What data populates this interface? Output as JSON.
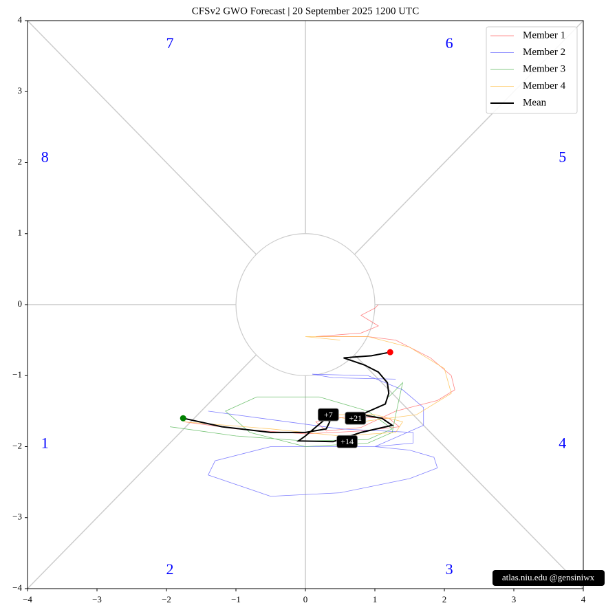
{
  "chart_data": {
    "type": "line",
    "title": "CFSv2 GWO Forecast   |   20  September  2025 1200 UTC",
    "xlim": [
      -4,
      4
    ],
    "ylim": [
      -4,
      4
    ],
    "xticks": [
      {
        "value": -4,
        "label": "−4"
      },
      {
        "value": -3,
        "label": "−3"
      },
      {
        "value": -2,
        "label": "−2"
      },
      {
        "value": -1,
        "label": "−1"
      },
      0,
      1,
      2,
      3,
      4
    ],
    "yticks": [
      {
        "value": -4,
        "label": "−4"
      },
      {
        "value": -3,
        "label": "−3"
      },
      {
        "value": -2,
        "label": "−2"
      },
      {
        "value": -1,
        "label": "−1"
      },
      0,
      1,
      2,
      3,
      4
    ],
    "legend": "upper right",
    "series": [
      {
        "name": "Member 1",
        "color": "#ff6f6f",
        "x": [
          -1.75,
          -1.0,
          0.0,
          0.8,
          1.35,
          1.2,
          0.6,
          0.15,
          0.3,
          0.8,
          1.3,
          1.9,
          2.15,
          2.1,
          1.8,
          1.3,
          0.9,
          0.15,
          0.8,
          1.05,
          0.8,
          1.0,
          1.05
        ],
        "y": [
          -1.65,
          -1.75,
          -1.82,
          -1.78,
          -1.72,
          -1.6,
          -1.58,
          -1.65,
          -1.78,
          -1.73,
          -1.5,
          -1.35,
          -1.2,
          -1.0,
          -0.75,
          -0.5,
          -0.45,
          -0.45,
          -0.4,
          -0.3,
          -0.15,
          -0.05,
          0.0
        ]
      },
      {
        "name": "Member 2",
        "color": "#6a6aff",
        "x": [
          -1.4,
          0.5,
          1.55,
          1.55,
          1.0,
          -0.5,
          -1.3,
          -1.4,
          -0.5,
          0.5,
          1.5,
          1.9,
          1.85,
          1.5,
          1.0,
          1.7,
          1.7,
          1.4,
          0.9,
          0.1,
          0.4,
          1.3
        ],
        "y": [
          -1.5,
          -1.75,
          -1.8,
          -1.95,
          -2.0,
          -2.0,
          -2.2,
          -2.4,
          -2.7,
          -2.65,
          -2.45,
          -2.3,
          -2.15,
          -2.05,
          -2.0,
          -1.7,
          -1.45,
          -1.2,
          -1.0,
          -0.98,
          -1.03,
          -1.05
        ]
      },
      {
        "name": "Member 3",
        "color": "#5cb85c",
        "x": [
          -1.95,
          -1.0,
          0.0,
          0.9,
          1.25,
          0.9,
          0.2,
          -0.7,
          -1.15,
          -0.8,
          0.0,
          0.9,
          1.25,
          1.3,
          1.4,
          1.2
        ],
        "y": [
          -1.72,
          -1.85,
          -1.92,
          -1.9,
          -1.75,
          -1.5,
          -1.3,
          -1.3,
          -1.5,
          -1.8,
          -2.0,
          -1.95,
          -1.8,
          -1.55,
          -1.1,
          -1.3
        ]
      },
      {
        "name": "Member 4",
        "color": "#ffc04d",
        "x": [
          -1.75,
          -0.5,
          0.5,
          1.3,
          1.4,
          1.0,
          0.3,
          0.8,
          1.6,
          2.1,
          2.0,
          1.5,
          0.9,
          0.0,
          0.5
        ],
        "y": [
          -1.65,
          -1.75,
          -1.85,
          -1.8,
          -1.65,
          -1.55,
          -1.55,
          -1.65,
          -1.55,
          -1.25,
          -0.9,
          -0.6,
          -0.45,
          -0.45,
          -0.5
        ]
      },
      {
        "name": "Mean",
        "color": "#000000",
        "x": [
          -1.76,
          -1.2,
          -0.5,
          0.0,
          0.3,
          0.35,
          0.3,
          0.0,
          -0.1,
          0.4,
          0.8,
          1.25,
          1.1,
          0.8,
          1.15,
          1.2,
          1.18,
          1.05,
          0.85,
          0.55,
          0.95,
          1.22
        ],
        "y": [
          -1.6,
          -1.72,
          -1.8,
          -1.8,
          -1.75,
          -1.65,
          -1.6,
          -1.85,
          -1.92,
          -1.93,
          -1.8,
          -1.7,
          -1.6,
          -1.55,
          -1.4,
          -1.25,
          -1.1,
          -0.95,
          -0.85,
          -0.75,
          -0.72,
          -0.67
        ]
      }
    ],
    "start_color": "#008000",
    "end_color": "#ff0000",
    "annotations": [
      {
        "text": "+7",
        "x": 0.33,
        "y": -1.55
      },
      {
        "text": "+21",
        "x": 0.72,
        "y": -1.6
      },
      {
        "text": "+14",
        "x": 0.6,
        "y": -1.93
      }
    ],
    "phase_labels": [
      {
        "text": "1",
        "x": -3.75,
        "y": -1.97
      },
      {
        "text": "2",
        "x": -1.95,
        "y": -3.75
      },
      {
        "text": "3",
        "x": 2.07,
        "y": -3.75
      },
      {
        "text": "4",
        "x": 3.7,
        "y": -1.97
      },
      {
        "text": "5",
        "x": 3.7,
        "y": 2.06
      },
      {
        "text": "6",
        "x": 2.07,
        "y": 3.66
      },
      {
        "text": "7",
        "x": -1.95,
        "y": 3.66
      },
      {
        "text": "8",
        "x": -3.75,
        "y": 2.06
      }
    ],
    "watermark": "atlas.niu.edu  @gensiniwx"
  }
}
